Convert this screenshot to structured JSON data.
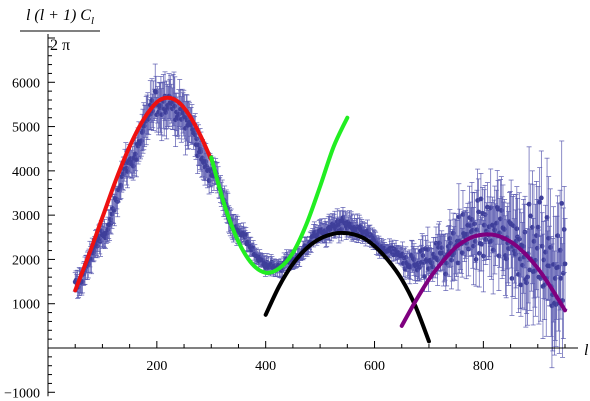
{
  "chart_data": {
    "type": "scatter",
    "ylabel": {
      "numerator": "l (l + 1) C",
      "subscript": "l",
      "denominator": "2 π"
    },
    "xlabel": "l",
    "xlim": [
      0,
      950
    ],
    "ylim": [
      -1000,
      7000
    ],
    "x_ticks": [
      200,
      400,
      600,
      800
    ],
    "y_ticks": [
      -1000,
      1000,
      2000,
      3000,
      4000,
      5000,
      6000
    ],
    "grid": false,
    "colors": {
      "data_points": "#3f3f9a",
      "error_bars": "#5a5ab0",
      "fit_red": "#ee1111",
      "fit_green": "#22ee22",
      "fit_black": "#000000",
      "fit_purple": "#7f007f"
    },
    "data_points": {
      "name": "",
      "x_range": [
        50,
        950
      ],
      "description_values": [
        [
          50,
          1400
        ],
        [
          100,
          2500
        ],
        [
          150,
          4200
        ],
        [
          200,
          5500
        ],
        [
          220,
          5600
        ],
        [
          250,
          5200
        ],
        [
          300,
          4000
        ],
        [
          350,
          2600
        ],
        [
          400,
          1900
        ],
        [
          420,
          1800
        ],
        [
          450,
          2000
        ],
        [
          500,
          2600
        ],
        [
          540,
          2800
        ],
        [
          580,
          2600
        ],
        [
          620,
          2200
        ],
        [
          680,
          1900
        ],
        [
          720,
          2100
        ],
        [
          780,
          2600
        ],
        [
          820,
          2600
        ],
        [
          880,
          2300
        ],
        [
          940,
          1800
        ]
      ]
    },
    "fits": [
      {
        "name": "",
        "color": "#ee1111",
        "x": [
          50,
          75,
          100,
          125,
          150,
          175,
          200,
          220,
          240,
          260,
          280,
          300
        ],
        "y": [
          1300,
          2100,
          2950,
          3800,
          4550,
          5150,
          5550,
          5650,
          5550,
          5250,
          4800,
          4250
        ]
      },
      {
        "name": "",
        "color": "#22ee22",
        "x": [
          300,
          325,
          350,
          375,
          400,
          425,
          450,
          475,
          500,
          525,
          550
        ],
        "y": [
          4300,
          3200,
          2400,
          1900,
          1700,
          1800,
          2150,
          2800,
          3650,
          4550,
          5200
        ]
      },
      {
        "name": "",
        "color": "#000000",
        "x": [
          400,
          425,
          450,
          475,
          500,
          525,
          540,
          560,
          580,
          600,
          625,
          650,
          675,
          700
        ],
        "y": [
          750,
          1400,
          1900,
          2250,
          2470,
          2580,
          2600,
          2570,
          2480,
          2300,
          1980,
          1550,
          950,
          150
        ]
      },
      {
        "name": "",
        "color": "#7f007f",
        "x": [
          650,
          675,
          700,
          725,
          750,
          775,
          800,
          825,
          850,
          875,
          900,
          925,
          950
        ],
        "y": [
          500,
          1050,
          1550,
          1950,
          2280,
          2480,
          2560,
          2540,
          2400,
          2150,
          1800,
          1350,
          850
        ]
      }
    ]
  }
}
